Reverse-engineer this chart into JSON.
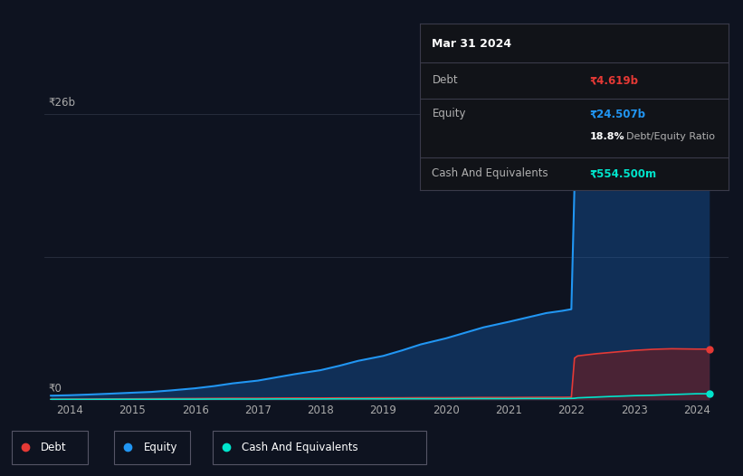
{
  "background_color": "#0e1320",
  "plot_bg_color": "#0e1320",
  "equity_color": "#2196f3",
  "debt_color": "#e53935",
  "cash_color": "#00e5cc",
  "equity_fill": "#1a3a5c",
  "debt_fill": "#5c1a1a",
  "ylim": [
    0,
    26
  ],
  "xlim_min": 2013.6,
  "xlim_max": 2024.5,
  "xticks": [
    2014,
    2015,
    2016,
    2017,
    2018,
    2019,
    2020,
    2021,
    2022,
    2023,
    2024
  ],
  "grid_color": "#2a3040",
  "tooltip_title": "Mar 31 2024",
  "tooltip_debt_label": "Debt",
  "tooltip_debt_value": "₹4.619b",
  "tooltip_equity_label": "Equity",
  "tooltip_equity_value": "₹24.507b",
  "tooltip_ratio": "18.8%",
  "tooltip_ratio_label": "Debt/Equity Ratio",
  "tooltip_cash_label": "Cash And Equivalents",
  "tooltip_cash_value": "₹554.500m",
  "legend_debt": "Debt",
  "legend_equity": "Equity",
  "legend_cash": "Cash And Equivalents",
  "ytop_label": "₹26b",
  "yzero_label": "₹0"
}
